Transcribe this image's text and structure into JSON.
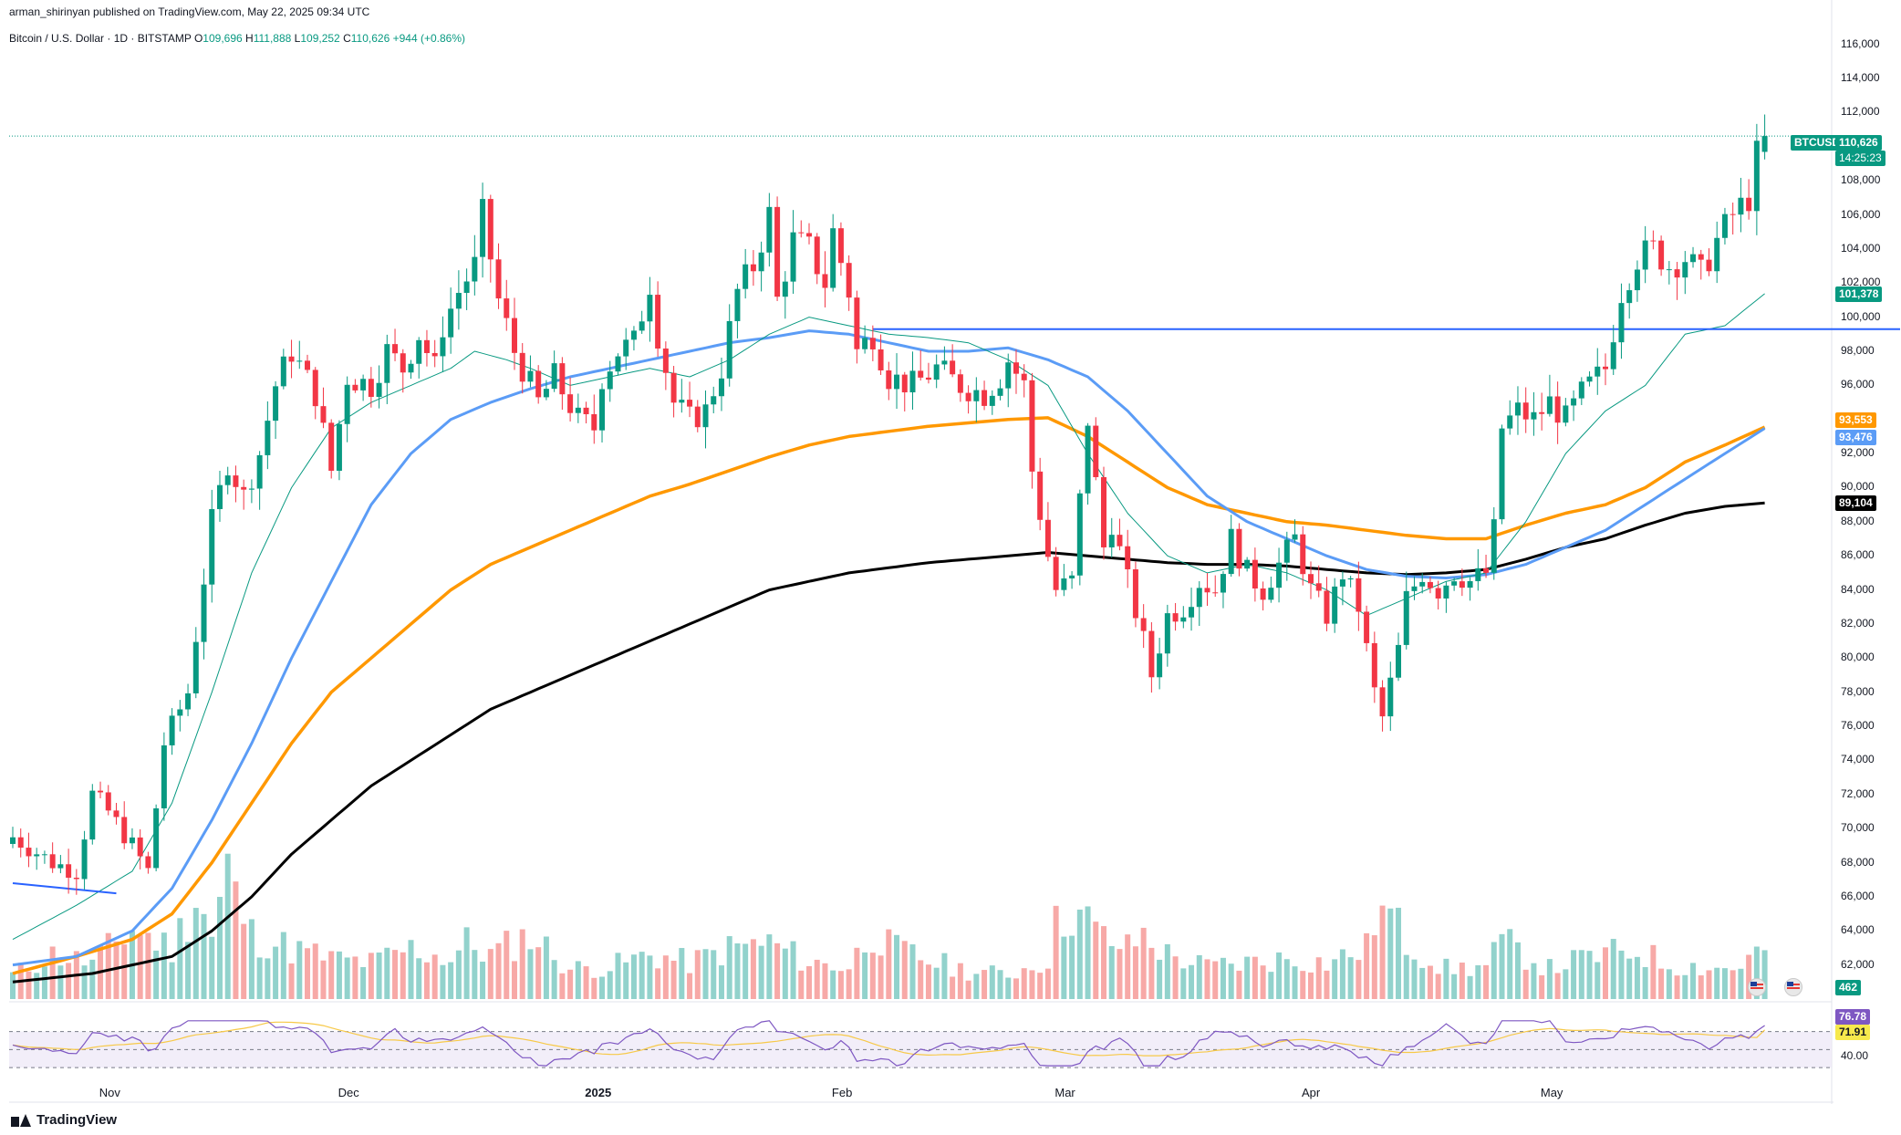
{
  "header": {
    "published": "arman_shirinyan published on TradingView.com, May 22, 2025 09:34 UTC",
    "symbol_line": "Bitcoin / U.S. Dollar · 1D · BITSTAMP",
    "o_label": "O",
    "o_value": "109,696",
    "h_label": "H",
    "h_value": "111,888",
    "l_label": "L",
    "l_value": "109,252",
    "c_label": "C",
    "c_value": "110,626",
    "change": "+944 (+0.86%)"
  },
  "tags": {
    "symbol": "BTCUSD",
    "last_price": "110,626",
    "countdown": "14:25:23",
    "ma_green": "101,378",
    "ma_orange": "93,553",
    "ma_blue": "93,476",
    "ma_black": "89,104",
    "volume": "462",
    "rsi_value": "76.78",
    "rsi_ma": "71.91",
    "rsi_level": "40.00"
  },
  "colors": {
    "up": "#089981",
    "down": "#f23645",
    "up_vol": "#92d2cc",
    "down_vol": "#f7a9a7",
    "ma_green": "#089981",
    "ma_blue": "#5b9cf6",
    "ma_orange": "#ff9800",
    "ma_black": "#000000",
    "hline": "#2962ff",
    "rsi": "#7e57c2",
    "rsi_ma": "#f7c948"
  },
  "brand": "TradingView",
  "chart_data": {
    "type": "candlestick",
    "title": "Bitcoin / U.S. Dollar · 1D · BITSTAMP",
    "ylim": [
      60000,
      117000
    ],
    "y_ticks": [
      "62,000",
      "64,000",
      "66,000",
      "68,000",
      "70,000",
      "72,000",
      "74,000",
      "76,000",
      "78,000",
      "80,000",
      "82,000",
      "84,000",
      "86,000",
      "88,000",
      "90,000",
      "92,000",
      "94,000",
      "96,000",
      "98,000",
      "100,000",
      "102,000",
      "104,000",
      "106,000",
      "108,000",
      "110,000",
      "112,000",
      "114,000",
      "116,000"
    ],
    "x_labels": [
      {
        "label": "Nov",
        "index": 12
      },
      {
        "label": "Dec",
        "index": 42
      },
      {
        "label": "2025",
        "index": 73
      },
      {
        "label": "Feb",
        "index": 104
      },
      {
        "label": "Mar",
        "index": 132
      },
      {
        "label": "Apr",
        "index": 163
      },
      {
        "label": "May",
        "index": 193
      }
    ],
    "close_keypoints": [
      [
        0,
        69500
      ],
      [
        5,
        68000
      ],
      [
        8,
        67500
      ],
      [
        10,
        72000
      ],
      [
        12,
        71000
      ],
      [
        15,
        69000
      ],
      [
        17,
        67500
      ],
      [
        19,
        75000
      ],
      [
        22,
        78000
      ],
      [
        25,
        88000
      ],
      [
        27,
        91500
      ],
      [
        29,
        89500
      ],
      [
        31,
        92000
      ],
      [
        33,
        96000
      ],
      [
        35,
        98000
      ],
      [
        38,
        95500
      ],
      [
        40,
        91000
      ],
      [
        42,
        96500
      ],
      [
        45,
        96000
      ],
      [
        47,
        98000
      ],
      [
        49,
        97000
      ],
      [
        51,
        99000
      ],
      [
        53,
        97000
      ],
      [
        54,
        99500
      ],
      [
        56,
        101500
      ],
      [
        58,
        103000
      ],
      [
        59,
        106000
      ],
      [
        61,
        101000
      ],
      [
        63,
        98000
      ],
      [
        66,
        95000
      ],
      [
        68,
        96500
      ],
      [
        71,
        94000
      ],
      [
        73,
        93500
      ],
      [
        74,
        96500
      ],
      [
        76,
        98000
      ],
      [
        78,
        98500
      ],
      [
        80,
        102000
      ],
      [
        81,
        99000
      ],
      [
        83,
        95000
      ],
      [
        85,
        94000
      ],
      [
        87,
        94500
      ],
      [
        89,
        97000
      ],
      [
        91,
        101500
      ],
      [
        93,
        103000
      ],
      [
        95,
        106000
      ],
      [
        96,
        101000
      ],
      [
        98,
        104500
      ],
      [
        100,
        104000
      ],
      [
        102,
        102000
      ],
      [
        103,
        105000
      ],
      [
        105,
        101500
      ],
      [
        106,
        98000
      ],
      [
        108,
        99000
      ],
      [
        110,
        96500
      ],
      [
        113,
        96000
      ],
      [
        116,
        97000
      ],
      [
        119,
        96000
      ],
      [
        122,
        95500
      ],
      [
        124,
        96500
      ],
      [
        125,
        97500
      ],
      [
        127,
        96000
      ],
      [
        128,
        91000
      ],
      [
        130,
        86000
      ],
      [
        131,
        84000
      ],
      [
        133,
        84500
      ],
      [
        135,
        94000
      ],
      [
        137,
        86500
      ],
      [
        138,
        88000
      ],
      [
        140,
        84500
      ],
      [
        142,
        81000
      ],
      [
        143,
        79000
      ],
      [
        145,
        82500
      ],
      [
        147,
        83000
      ],
      [
        149,
        84500
      ],
      [
        151,
        84000
      ],
      [
        153,
        87000
      ],
      [
        155,
        85000
      ],
      [
        157,
        84000
      ],
      [
        159,
        85500
      ],
      [
        161,
        87000
      ],
      [
        163,
        84000
      ],
      [
        165,
        82500
      ],
      [
        167,
        85000
      ],
      [
        169,
        83000
      ],
      [
        171,
        78000
      ],
      [
        172,
        76500
      ],
      [
        174,
        80500
      ],
      [
        175,
        83500
      ],
      [
        177,
        85000
      ],
      [
        179,
        84000
      ],
      [
        181,
        85000
      ],
      [
        183,
        84500
      ],
      [
        185,
        85000
      ],
      [
        186,
        87500
      ],
      [
        187,
        93500
      ],
      [
        189,
        94500
      ],
      [
        191,
        94000
      ],
      [
        193,
        95000
      ],
      [
        195,
        94000
      ],
      [
        197,
        95500
      ],
      [
        199,
        96500
      ],
      [
        200,
        97000
      ],
      [
        202,
        101500
      ],
      [
        204,
        103500
      ],
      [
        206,
        104000
      ],
      [
        208,
        103000
      ],
      [
        210,
        103500
      ],
      [
        212,
        102500
      ],
      [
        214,
        104500
      ],
      [
        216,
        106000
      ],
      [
        218,
        107000
      ],
      [
        219,
        109500
      ],
      [
        220,
        110626
      ]
    ],
    "ma_green_points": [
      [
        0,
        63500
      ],
      [
        8,
        65500
      ],
      [
        15,
        67500
      ],
      [
        20,
        71500
      ],
      [
        25,
        78000
      ],
      [
        30,
        85000
      ],
      [
        35,
        90000
      ],
      [
        40,
        93500
      ],
      [
        45,
        95000
      ],
      [
        50,
        96000
      ],
      [
        55,
        97000
      ],
      [
        58,
        98000
      ],
      [
        62,
        97500
      ],
      [
        65,
        97000
      ],
      [
        70,
        96000
      ],
      [
        75,
        96500
      ],
      [
        80,
        97000
      ],
      [
        85,
        96500
      ],
      [
        90,
        97500
      ],
      [
        95,
        99000
      ],
      [
        100,
        100000
      ],
      [
        105,
        99500
      ],
      [
        110,
        99000
      ],
      [
        115,
        98800
      ],
      [
        120,
        98500
      ],
      [
        125,
        97500
      ],
      [
        130,
        96000
      ],
      [
        135,
        92000
      ],
      [
        140,
        88500
      ],
      [
        145,
        86000
      ],
      [
        150,
        85000
      ],
      [
        155,
        85500
      ],
      [
        160,
        85000
      ],
      [
        165,
        84000
      ],
      [
        170,
        82500
      ],
      [
        175,
        83500
      ],
      [
        180,
        84500
      ],
      [
        185,
        85000
      ],
      [
        190,
        88000
      ],
      [
        195,
        92000
      ],
      [
        200,
        94500
      ],
      [
        205,
        96000
      ],
      [
        210,
        99000
      ],
      [
        215,
        99500
      ],
      [
        220,
        101378
      ]
    ],
    "ma_blue_points": [
      [
        0,
        62000
      ],
      [
        8,
        62500
      ],
      [
        15,
        64000
      ],
      [
        20,
        66500
      ],
      [
        25,
        70500
      ],
      [
        30,
        75000
      ],
      [
        35,
        80000
      ],
      [
        40,
        84500
      ],
      [
        45,
        89000
      ],
      [
        50,
        92000
      ],
      [
        55,
        94000
      ],
      [
        60,
        95000
      ],
      [
        65,
        95800
      ],
      [
        70,
        96500
      ],
      [
        75,
        97000
      ],
      [
        80,
        97500
      ],
      [
        85,
        98000
      ],
      [
        90,
        98500
      ],
      [
        95,
        98800
      ],
      [
        100,
        99200
      ],
      [
        105,
        99000
      ],
      [
        110,
        98500
      ],
      [
        115,
        98000
      ],
      [
        120,
        98000
      ],
      [
        125,
        98200
      ],
      [
        130,
        97500
      ],
      [
        135,
        96500
      ],
      [
        140,
        94500
      ],
      [
        145,
        92000
      ],
      [
        150,
        89500
      ],
      [
        155,
        88000
      ],
      [
        160,
        87000
      ],
      [
        165,
        86000
      ],
      [
        170,
        85200
      ],
      [
        175,
        84800
      ],
      [
        180,
        84700
      ],
      [
        185,
        84900
      ],
      [
        190,
        85500
      ],
      [
        195,
        86500
      ],
      [
        200,
        87500
      ],
      [
        205,
        89000
      ],
      [
        210,
        90500
      ],
      [
        215,
        92000
      ],
      [
        220,
        93476
      ]
    ],
    "ma_orange_points": [
      [
        0,
        61500
      ],
      [
        8,
        62500
      ],
      [
        15,
        63500
      ],
      [
        20,
        65000
      ],
      [
        25,
        68000
      ],
      [
        30,
        71500
      ],
      [
        35,
        75000
      ],
      [
        40,
        78000
      ],
      [
        45,
        80000
      ],
      [
        50,
        82000
      ],
      [
        55,
        84000
      ],
      [
        60,
        85500
      ],
      [
        65,
        86500
      ],
      [
        70,
        87500
      ],
      [
        75,
        88500
      ],
      [
        80,
        89500
      ],
      [
        85,
        90200
      ],
      [
        90,
        91000
      ],
      [
        95,
        91800
      ],
      [
        100,
        92500
      ],
      [
        105,
        93000
      ],
      [
        110,
        93300
      ],
      [
        115,
        93600
      ],
      [
        120,
        93800
      ],
      [
        125,
        94000
      ],
      [
        130,
        94100
      ],
      [
        135,
        93000
      ],
      [
        140,
        91500
      ],
      [
        145,
        90000
      ],
      [
        150,
        89000
      ],
      [
        155,
        88500
      ],
      [
        160,
        88000
      ],
      [
        165,
        87800
      ],
      [
        170,
        87500
      ],
      [
        175,
        87200
      ],
      [
        180,
        87000
      ],
      [
        185,
        87000
      ],
      [
        190,
        87800
      ],
      [
        195,
        88500
      ],
      [
        200,
        89000
      ],
      [
        205,
        90000
      ],
      [
        210,
        91500
      ],
      [
        215,
        92500
      ],
      [
        220,
        93553
      ]
    ],
    "ma_black_points": [
      [
        0,
        61000
      ],
      [
        10,
        61500
      ],
      [
        20,
        62500
      ],
      [
        25,
        64000
      ],
      [
        30,
        66000
      ],
      [
        35,
        68500
      ],
      [
        40,
        70500
      ],
      [
        45,
        72500
      ],
      [
        50,
        74000
      ],
      [
        55,
        75500
      ],
      [
        60,
        77000
      ],
      [
        65,
        78000
      ],
      [
        70,
        79000
      ],
      [
        75,
        80000
      ],
      [
        80,
        81000
      ],
      [
        85,
        82000
      ],
      [
        90,
        83000
      ],
      [
        95,
        84000
      ],
      [
        100,
        84500
      ],
      [
        105,
        85000
      ],
      [
        110,
        85300
      ],
      [
        115,
        85600
      ],
      [
        120,
        85800
      ],
      [
        125,
        86000
      ],
      [
        130,
        86200
      ],
      [
        135,
        86000
      ],
      [
        140,
        85800
      ],
      [
        145,
        85600
      ],
      [
        150,
        85500
      ],
      [
        155,
        85500
      ],
      [
        160,
        85400
      ],
      [
        165,
        85200
      ],
      [
        170,
        85000
      ],
      [
        175,
        84900
      ],
      [
        180,
        85000
      ],
      [
        185,
        85200
      ],
      [
        190,
        85800
      ],
      [
        195,
        86500
      ],
      [
        200,
        87000
      ],
      [
        205,
        87800
      ],
      [
        210,
        88500
      ],
      [
        215,
        88900
      ],
      [
        220,
        89104
      ]
    ],
    "hline": {
      "value": 99300,
      "from_index": 108,
      "to_index": 237
    },
    "early_hline": {
      "value_start": 66800,
      "value_end": 66200,
      "from_index": 0,
      "to_index": 13
    },
    "volume_max_index_values": [
      [
        0,
        1.2
      ],
      [
        5,
        2.2
      ],
      [
        10,
        1.8
      ],
      [
        15,
        3.5
      ],
      [
        20,
        2.5
      ],
      [
        22,
        4.2
      ],
      [
        23,
        5.2
      ],
      [
        24,
        4.4
      ],
      [
        25,
        3.0
      ],
      [
        27,
        6.5
      ],
      [
        28,
        5.0
      ],
      [
        30,
        3.2
      ],
      [
        35,
        2.5
      ],
      [
        40,
        2.0
      ],
      [
        45,
        1.8
      ],
      [
        50,
        2.5
      ],
      [
        55,
        2.0
      ],
      [
        57,
        2.8
      ],
      [
        60,
        2.2
      ],
      [
        65,
        3.2
      ],
      [
        70,
        1.5
      ],
      [
        75,
        1.6
      ],
      [
        80,
        2.2
      ],
      [
        85,
        1.8
      ],
      [
        90,
        2.5
      ],
      [
        95,
        2.8
      ],
      [
        100,
        1.8
      ],
      [
        105,
        1.6
      ],
      [
        108,
        3.4
      ],
      [
        110,
        2.6
      ],
      [
        115,
        1.9
      ],
      [
        120,
        1.4
      ],
      [
        125,
        1.2
      ],
      [
        130,
        2.0
      ],
      [
        131,
        3.6
      ],
      [
        133,
        4.5
      ],
      [
        135,
        3.8
      ],
      [
        137,
        3.0
      ],
      [
        140,
        2.5
      ],
      [
        142,
        3.2
      ],
      [
        145,
        2.2
      ],
      [
        150,
        1.6
      ],
      [
        155,
        1.8
      ],
      [
        160,
        2.0
      ],
      [
        165,
        1.8
      ],
      [
        170,
        2.5
      ],
      [
        171,
        4.1
      ],
      [
        173,
        4.2
      ],
      [
        175,
        2.8
      ],
      [
        180,
        1.5
      ],
      [
        185,
        1.6
      ],
      [
        187,
        2.8
      ],
      [
        189,
        2.4
      ],
      [
        193,
        1.5
      ],
      [
        195,
        1.8
      ],
      [
        200,
        2.2
      ],
      [
        204,
        2.4
      ],
      [
        208,
        1.7
      ],
      [
        212,
        1.6
      ],
      [
        216,
        1.5
      ],
      [
        220,
        2.5
      ]
    ],
    "volume_last": "462",
    "rsi": {
      "ylim": [
        25,
        95
      ],
      "levels": [
        70,
        50,
        30
      ],
      "last": 76.78,
      "ma_last": 71.91,
      "label_40": "40.00"
    }
  }
}
